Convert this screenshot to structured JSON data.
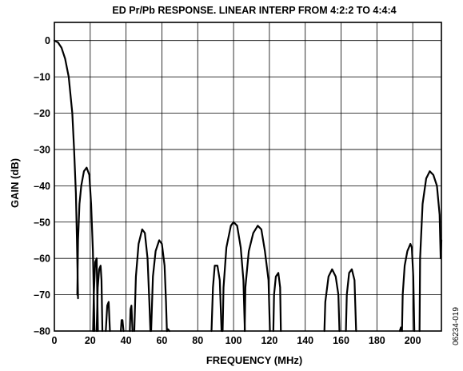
{
  "figure_id": "06234-019",
  "chart_data": {
    "type": "line",
    "title": "ED Pr/Pb RESPONSE. LINEAR INTERP FROM 4:2:2 TO 4:4:4",
    "xlabel": "FREQUENCY (MHz)",
    "ylabel": "GAIN (dB)",
    "xlim": [
      0,
      216
    ],
    "ylim": [
      -80,
      5
    ],
    "x_ticks": [
      0,
      20,
      40,
      60,
      80,
      100,
      120,
      140,
      160,
      180,
      200
    ],
    "y_ticks": [
      0,
      -10,
      -20,
      -30,
      -40,
      -50,
      -60,
      -70,
      -80
    ],
    "x_tick_labels": [
      "0",
      "20",
      "40",
      "60",
      "80",
      "100",
      "120",
      "140",
      "160",
      "180",
      "200"
    ],
    "y_tick_labels": [
      "0",
      "–10",
      "–20",
      "–30",
      "–40",
      "–50",
      "–60",
      "–70",
      "–80"
    ],
    "grid": true,
    "series": [
      {
        "segments": [
          [
            [
              0,
              0
            ],
            [
              2,
              -0.5
            ],
            [
              4,
              -2
            ],
            [
              6,
              -5
            ],
            [
              8,
              -10
            ],
            [
              10,
              -20
            ],
            [
              11,
              -30
            ],
            [
              12,
              -42
            ],
            [
              12.6,
              -55
            ],
            [
              13.2,
              -71
            ]
          ],
          [
            [
              12.8,
              -70
            ],
            [
              13.2,
              -55
            ],
            [
              14,
              -45
            ],
            [
              15,
              -40
            ],
            [
              16.5,
              -36
            ],
            [
              18,
              -35
            ],
            [
              19.5,
              -37
            ],
            [
              20.5,
              -45
            ],
            [
              21.5,
              -58
            ],
            [
              22,
              -70
            ],
            [
              22.4,
              -80
            ]
          ],
          [
            [
              21.6,
              -80
            ],
            [
              22,
              -70
            ],
            [
              22.8,
              -61
            ],
            [
              23.6,
              -60
            ],
            [
              24.3,
              -80
            ]
          ],
          [
            [
              23.6,
              -80
            ],
            [
              24.2,
              -68
            ],
            [
              25,
              -63
            ],
            [
              25.8,
              -62
            ],
            [
              26.3,
              -66
            ],
            [
              26.8,
              -80
            ]
          ],
          [
            [
              28.7,
              -80
            ],
            [
              29.5,
              -73
            ],
            [
              30.3,
              -72
            ],
            [
              31,
              -80
            ]
          ],
          [
            [
              37.1,
              -80
            ],
            [
              37.5,
              -77
            ],
            [
              38,
              -77
            ],
            [
              38.6,
              -80
            ]
          ],
          [
            [
              42.1,
              -80
            ],
            [
              42.5,
              -74
            ],
            [
              43,
              -73
            ],
            [
              43.6,
              -80
            ]
          ],
          [
            [
              44.6,
              -80
            ],
            [
              45.5,
              -65
            ],
            [
              47,
              -56
            ],
            [
              49,
              -52
            ],
            [
              50.5,
              -53
            ],
            [
              52,
              -60
            ],
            [
              53,
              -72
            ],
            [
              53.6,
              -80
            ]
          ],
          [
            [
              54,
              -80
            ],
            [
              55,
              -65
            ],
            [
              56.5,
              -58
            ],
            [
              58.5,
              -55
            ],
            [
              60,
              -56
            ],
            [
              61.5,
              -62
            ],
            [
              62.3,
              -72
            ],
            [
              62.8,
              -80
            ]
          ],
          [
            [
              62.9,
              -80
            ],
            [
              63.4,
              -79.5
            ],
            [
              64.2,
              -80
            ]
          ],
          [
            [
              87.7,
              -80
            ],
            [
              88.5,
              -68
            ],
            [
              89.5,
              -62
            ],
            [
              91,
              -62
            ],
            [
              92.3,
              -66
            ],
            [
              93.3,
              -80
            ]
          ],
          [
            [
              93.9,
              -80
            ],
            [
              94.4,
              -68
            ],
            [
              96,
              -57
            ],
            [
              98.5,
              -51
            ],
            [
              100,
              -50
            ],
            [
              102,
              -51
            ],
            [
              104,
              -57
            ],
            [
              105.5,
              -66
            ],
            [
              106.3,
              -80
            ]
          ],
          [
            [
              106.2,
              -80
            ],
            [
              106.6,
              -68
            ],
            [
              108.5,
              -58
            ],
            [
              111,
              -53
            ],
            [
              113.5,
              -51
            ],
            [
              115.5,
              -52
            ],
            [
              117.5,
              -58
            ],
            [
              119.5,
              -66
            ],
            [
              120.3,
              -80
            ]
          ],
          [
            [
              122.2,
              -80
            ],
            [
              122.6,
              -70
            ],
            [
              123.6,
              -65
            ],
            [
              125,
              -64
            ],
            [
              126,
              -68
            ],
            [
              126.4,
              -80
            ]
          ],
          [
            [
              150.7,
              -80
            ],
            [
              151.2,
              -72
            ],
            [
              153,
              -65
            ],
            [
              155,
              -63
            ],
            [
              157,
              -65
            ],
            [
              158.5,
              -70
            ],
            [
              159.1,
              -80
            ]
          ],
          [
            [
              162.7,
              -80
            ],
            [
              163.2,
              -70
            ],
            [
              164.5,
              -64
            ],
            [
              166,
              -63
            ],
            [
              167.5,
              -66
            ],
            [
              168.4,
              -80
            ]
          ],
          [
            [
              192.8,
              -80
            ],
            [
              193.4,
              -79
            ],
            [
              194.1,
              -80
            ]
          ],
          [
            [
              194,
              -80
            ],
            [
              194.4,
              -70
            ],
            [
              195.5,
              -62
            ],
            [
              197,
              -58
            ],
            [
              198.7,
              -56
            ],
            [
              199.5,
              -57
            ],
            [
              200.3,
              -65
            ],
            [
              200.9,
              -80
            ]
          ],
          [
            [
              203.8,
              -80
            ],
            [
              204.1,
              -60
            ],
            [
              205.5,
              -45
            ],
            [
              207.5,
              -38
            ],
            [
              209.5,
              -36
            ],
            [
              211.5,
              -37
            ],
            [
              213.5,
              -40
            ],
            [
              215,
              -48
            ],
            [
              215.6,
              -60
            ],
            [
              216,
              -55
            ]
          ]
        ]
      }
    ]
  }
}
